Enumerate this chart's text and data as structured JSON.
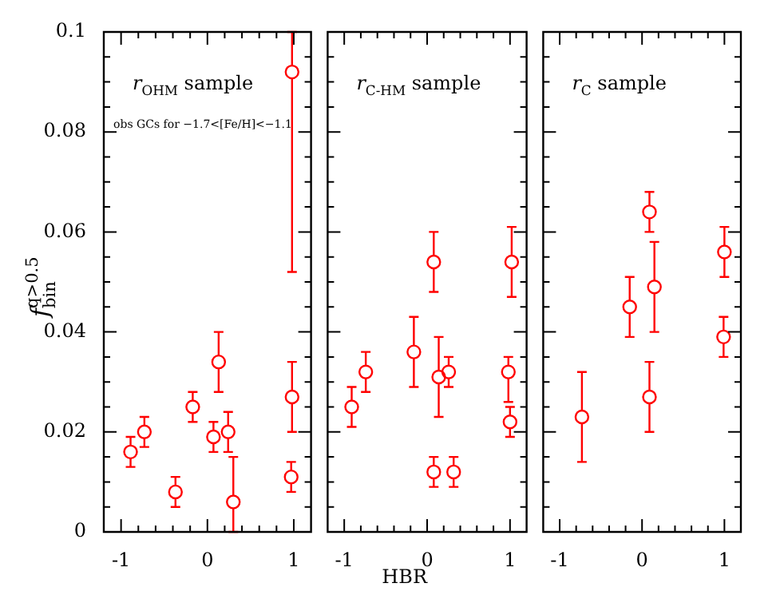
{
  "chart_data": [
    {
      "type": "scatter",
      "ylabel": "f$_{bin}$$^{q>0.5}$",
      "annotations": [
        "r$_{OHM}$ sample",
        "obs GCs for −1.7<[Fe/H]<−1.1"
      ],
      "x": [
        -0.89,
        -0.73,
        -0.37,
        -0.17,
        0.07,
        0.13,
        0.24,
        0.3,
        0.98,
        0.98,
        0.97
      ],
      "values": [
        0.016,
        0.02,
        0.008,
        0.025,
        0.019,
        0.034,
        0.02,
        0.006,
        0.092,
        0.027,
        0.011
      ],
      "errors": [
        [
          0.013,
          0.019
        ],
        [
          0.017,
          0.023
        ],
        [
          0.005,
          0.011
        ],
        [
          0.022,
          0.028
        ],
        [
          0.016,
          0.022
        ],
        [
          0.028,
          0.04
        ],
        [
          0.016,
          0.024
        ],
        [
          0,
          0.015
        ],
        [
          0.052,
          0.1
        ],
        [
          0.02,
          0.034
        ],
        [
          0.008,
          0.014
        ]
      ],
      "color": "#ff0000",
      "marker": "circle",
      "xlim": [
        -1.2,
        1.2
      ],
      "xticks": [
        -1,
        {
          "value": -0.8,
          "label": null
        },
        {
          "value": -0.6,
          "label": null
        },
        {
          "value": -0.4,
          "label": null
        },
        {
          "value": -0.2,
          "label": null
        },
        0,
        {
          "value": 0.2,
          "label": null
        },
        {
          "value": 0.4,
          "label": null
        },
        {
          "value": 0.6,
          "label": null
        },
        {
          "value": 0.8,
          "label": null
        },
        1
      ],
      "ylim": [
        0,
        0.1
      ],
      "yticks": [
        0,
        {
          "value": 0.005,
          "label": null
        },
        {
          "value": 0.01,
          "label": null
        },
        {
          "value": 0.015,
          "label": null
        },
        0.02,
        {
          "value": 0.025,
          "label": null
        },
        {
          "value": 0.03,
          "label": null
        },
        {
          "value": 0.035,
          "label": null
        },
        0.04,
        {
          "value": 0.045,
          "label": null
        },
        {
          "value": 0.05,
          "label": null
        },
        {
          "value": 0.055,
          "label": null
        },
        0.06,
        {
          "value": 0.065,
          "label": null
        },
        {
          "value": 0.07,
          "label": null
        },
        {
          "value": 0.075,
          "label": null
        },
        0.08,
        {
          "value": 0.085,
          "label": null
        },
        {
          "value": 0.09,
          "label": null
        },
        {
          "value": 0.095,
          "label": null
        },
        0.1
      ],
      "grid": false,
      "legend": false
    },
    {
      "type": "scatter",
      "xlabel": "HBR",
      "annotations": [
        "r$_{C-HM}$ sample"
      ],
      "x": [
        -0.91,
        -0.74,
        -0.16,
        0.08,
        0.08,
        0.14,
        0.26,
        0.32,
        1.02,
        0.98,
        1.0
      ],
      "values": [
        0.025,
        0.032,
        0.036,
        0.054,
        0.012,
        0.031,
        0.032,
        0.012,
        0.054,
        0.032,
        0.022
      ],
      "errors": [
        [
          0.021,
          0.029
        ],
        [
          0.028,
          0.036
        ],
        [
          0.029,
          0.043
        ],
        [
          0.048,
          0.06
        ],
        [
          0.009,
          0.015
        ],
        [
          0.023,
          0.039
        ],
        [
          0.029,
          0.035
        ],
        [
          0.009,
          0.015
        ],
        [
          0.047,
          0.061
        ],
        [
          0.026,
          0.035
        ],
        [
          0.019,
          0.025
        ]
      ],
      "color": "#ff0000",
      "marker": "circle",
      "xlim": [
        -1.2,
        1.2
      ],
      "xticks": [
        -1,
        {
          "value": -0.8,
          "label": null
        },
        {
          "value": -0.6,
          "label": null
        },
        {
          "value": -0.4,
          "label": null
        },
        {
          "value": -0.2,
          "label": null
        },
        0,
        {
          "value": 0.2,
          "label": null
        },
        {
          "value": 0.4,
          "label": null
        },
        {
          "value": 0.6,
          "label": null
        },
        {
          "value": 0.8,
          "label": null
        },
        1
      ],
      "ylim": [
        0,
        0.1
      ],
      "yticks": [
        0,
        {
          "value": 0.005,
          "label": null
        },
        {
          "value": 0.01,
          "label": null
        },
        {
          "value": 0.015,
          "label": null
        },
        0.02,
        {
          "value": 0.025,
          "label": null
        },
        {
          "value": 0.03,
          "label": null
        },
        {
          "value": 0.035,
          "label": null
        },
        0.04,
        {
          "value": 0.045,
          "label": null
        },
        {
          "value": 0.05,
          "label": null
        },
        {
          "value": 0.055,
          "label": null
        },
        0.06,
        {
          "value": 0.065,
          "label": null
        },
        {
          "value": 0.07,
          "label": null
        },
        {
          "value": 0.075,
          "label": null
        },
        0.08,
        {
          "value": 0.085,
          "label": null
        },
        {
          "value": 0.09,
          "label": null
        },
        {
          "value": 0.095,
          "label": null
        },
        0.1
      ],
      "tick_labels": "x",
      "grid": false,
      "legend": false
    },
    {
      "type": "scatter",
      "annotations": [
        "r$_{C}$ sample"
      ],
      "x": [
        -0.73,
        -0.15,
        0.09,
        0.09,
        0.15,
        1.0,
        0.99
      ],
      "values": [
        0.023,
        0.045,
        0.064,
        0.027,
        0.049,
        0.056,
        0.039
      ],
      "errors": [
        [
          0.014,
          0.032
        ],
        [
          0.039,
          0.051
        ],
        [
          0.06,
          0.068
        ],
        [
          0.02,
          0.034
        ],
        [
          0.04,
          0.058
        ],
        [
          0.051,
          0.061
        ],
        [
          0.035,
          0.043
        ]
      ],
      "color": "#ff0000",
      "marker": "circle",
      "xlim": [
        -1.2,
        1.2
      ],
      "xticks": [
        -1,
        {
          "value": -0.8,
          "label": null
        },
        {
          "value": -0.6,
          "label": null
        },
        {
          "value": -0.4,
          "label": null
        },
        {
          "value": -0.2,
          "label": null
        },
        0,
        {
          "value": 0.2,
          "label": null
        },
        {
          "value": 0.4,
          "label": null
        },
        {
          "value": 0.6,
          "label": null
        },
        {
          "value": 0.8,
          "label": null
        },
        1
      ],
      "ylim": [
        0,
        0.1
      ],
      "yticks": [
        0,
        {
          "value": 0.005,
          "label": null
        },
        {
          "value": 0.01,
          "label": null
        },
        {
          "value": 0.015,
          "label": null
        },
        0.02,
        {
          "value": 0.025,
          "label": null
        },
        {
          "value": 0.03,
          "label": null
        },
        {
          "value": 0.035,
          "label": null
        },
        0.04,
        {
          "value": 0.045,
          "label": null
        },
        {
          "value": 0.05,
          "label": null
        },
        {
          "value": 0.055,
          "label": null
        },
        0.06,
        {
          "value": 0.065,
          "label": null
        },
        {
          "value": 0.07,
          "label": null
        },
        {
          "value": 0.075,
          "label": null
        },
        0.08,
        {
          "value": 0.085,
          "label": null
        },
        {
          "value": 0.09,
          "label": null
        },
        {
          "value": 0.095,
          "label": null
        },
        0.1
      ],
      "tick_labels": "x",
      "grid": false,
      "legend": false
    }
  ]
}
